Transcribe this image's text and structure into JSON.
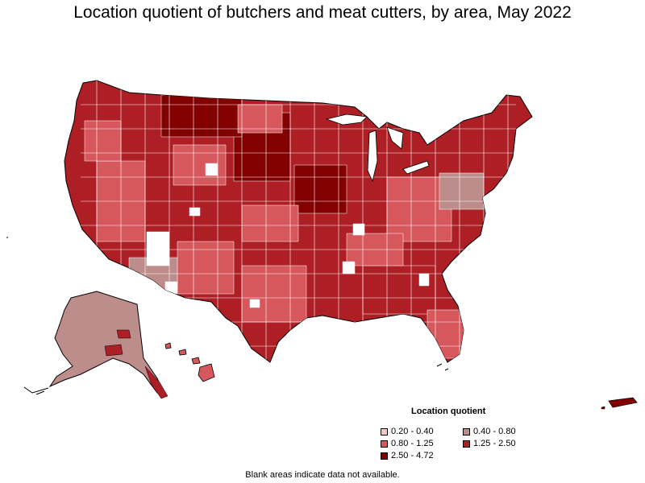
{
  "title": "Location quotient of butchers and meat cutters, by area, May 2022",
  "legend": {
    "title": "Location quotient",
    "items": [
      {
        "label": "0.20 - 0.40",
        "color": "#f2c7c5"
      },
      {
        "label": "0.40 - 0.80",
        "color": "#bd8d8c"
      },
      {
        "label": "0.80 - 1.25",
        "color": "#d6575c"
      },
      {
        "label": "1.25 - 2.50",
        "color": "#ad1f24"
      },
      {
        "label": "2.50 - 4.72",
        "color": "#820000"
      }
    ]
  },
  "footnote": "Blank areas indicate data not available.",
  "colors": {
    "outline": "#000000",
    "lake": "#ffffff",
    "no_data": "#ffffff"
  }
}
